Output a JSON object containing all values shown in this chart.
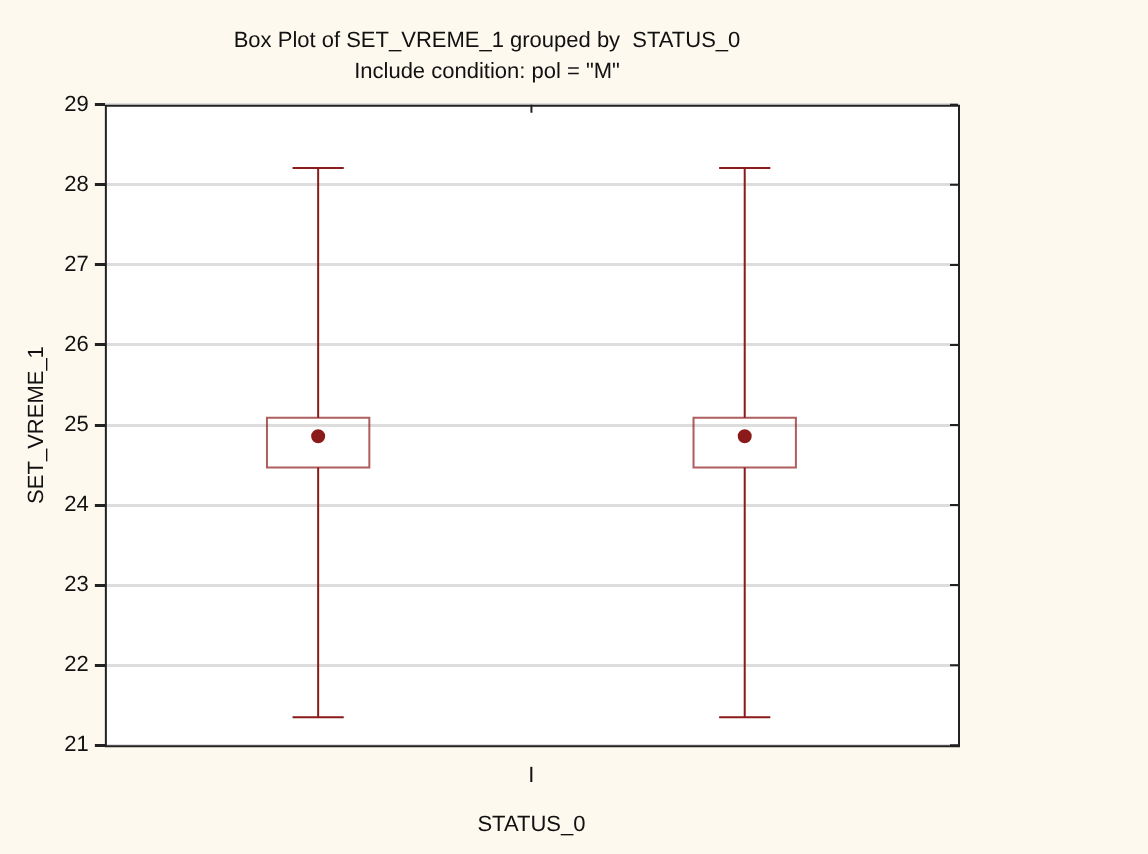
{
  "chart_data": {
    "type": "box",
    "title": "Box Plot of SET_VREME_1 grouped by  STATUS_0",
    "subtitle": "Include condition: pol = \"M\"",
    "xlabel": "STATUS_0",
    "ylabel": "SET_VREME_1",
    "categories": [
      null,
      "I",
      null
    ],
    "series": [
      {
        "color": "#8b1a1a",
        "boxes": [
          {
            "low": 21.35,
            "q1": 24.47,
            "median": 24.86,
            "q3": 25.09,
            "high": 28.21
          },
          null,
          {
            "low": 21.35,
            "q1": 24.47,
            "median": 24.86,
            "q3": 25.09,
            "high": 28.21
          }
        ]
      }
    ],
    "ylim": [
      21,
      29
    ],
    "yticks": [
      21,
      22,
      23,
      24,
      25,
      26,
      27,
      28,
      29
    ],
    "grid": "y"
  }
}
